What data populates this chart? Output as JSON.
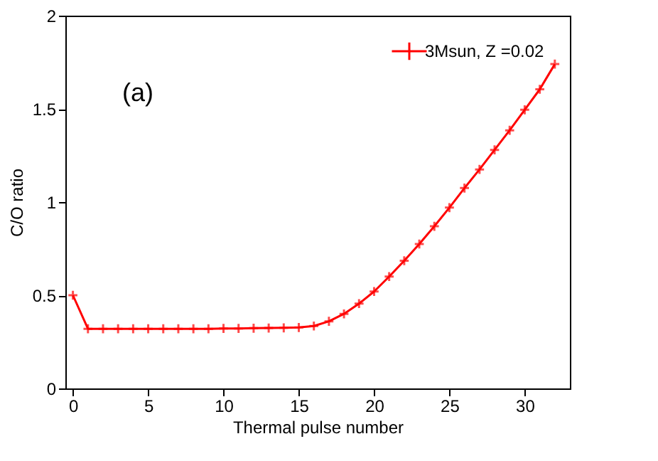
{
  "chart_data": {
    "type": "line",
    "xlabel": "Thermal pulse number",
    "ylabel": "C/O ratio",
    "xlim": [
      -0.5,
      33
    ],
    "xticks": [
      0,
      5,
      10,
      15,
      20,
      25,
      30
    ],
    "ylim": [
      0,
      2
    ],
    "yticks": [
      0,
      0.5,
      1,
      1.5,
      2
    ],
    "x": [
      0,
      1,
      2,
      3,
      4,
      5,
      6,
      7,
      8,
      9,
      10,
      11,
      12,
      13,
      14,
      15,
      16,
      17,
      18,
      19,
      20,
      21,
      22,
      23,
      24,
      25,
      26,
      27,
      28,
      29,
      30,
      31,
      32
    ],
    "series": [
      {
        "name": "3Msun, Z =0.02",
        "color": "#ff0000",
        "values": [
          0.5,
          0.32,
          0.32,
          0.32,
          0.32,
          0.32,
          0.32,
          0.32,
          0.32,
          0.32,
          0.322,
          0.322,
          0.323,
          0.324,
          0.325,
          0.327,
          0.335,
          0.36,
          0.4,
          0.455,
          0.52,
          0.6,
          0.685,
          0.775,
          0.87,
          0.97,
          1.075,
          1.175,
          1.28,
          1.385,
          1.495,
          1.605,
          1.74
        ]
      }
    ],
    "annotations": [
      "(a)"
    ],
    "marker": "cross",
    "line_style": "solid",
    "legend": "top right",
    "grid": false
  }
}
